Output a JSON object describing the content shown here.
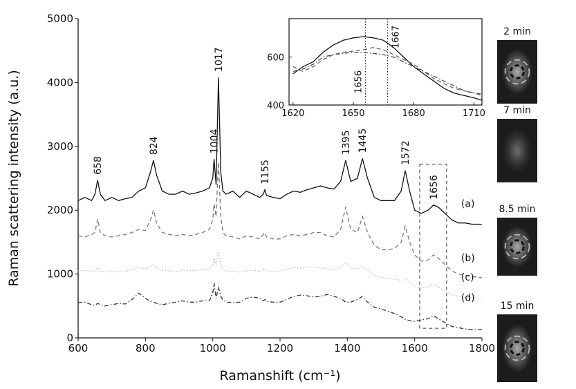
{
  "chart_data": [
    {
      "type": "line",
      "xlabel": "Ramanshift (cm⁻¹)",
      "ylabel": "Raman scattering intensity (a.u.)",
      "xlim": [
        600,
        1800
      ],
      "ylim": [
        0,
        5000
      ],
      "xticks": [
        600,
        800,
        1000,
        1200,
        1400,
        1600,
        1800
      ],
      "yticks": [
        0,
        1000,
        2000,
        3000,
        4000,
        5000
      ],
      "x": [
        600,
        620,
        640,
        650,
        658,
        666,
        680,
        700,
        720,
        740,
        760,
        780,
        800,
        815,
        824,
        833,
        850,
        870,
        890,
        910,
        930,
        950,
        970,
        990,
        1000,
        1004,
        1010,
        1017,
        1024,
        1030,
        1040,
        1060,
        1080,
        1100,
        1120,
        1140,
        1150,
        1155,
        1160,
        1180,
        1200,
        1220,
        1240,
        1260,
        1280,
        1300,
        1320,
        1340,
        1360,
        1380,
        1395,
        1410,
        1430,
        1445,
        1460,
        1480,
        1500,
        1520,
        1540,
        1560,
        1572,
        1585,
        1600,
        1620,
        1640,
        1656,
        1670,
        1690,
        1710,
        1730,
        1750,
        1770,
        1790,
        1800
      ],
      "series": [
        {
          "name": "(a)",
          "color": "#111111",
          "style": "solid",
          "values": [
            2150,
            2200,
            2150,
            2250,
            2470,
            2250,
            2150,
            2200,
            2150,
            2180,
            2200,
            2300,
            2350,
            2600,
            2780,
            2550,
            2300,
            2250,
            2250,
            2300,
            2250,
            2270,
            2300,
            2350,
            2500,
            2800,
            2400,
            4080,
            2600,
            2300,
            2250,
            2300,
            2200,
            2300,
            2250,
            2200,
            2250,
            2320,
            2230,
            2200,
            2180,
            2250,
            2300,
            2280,
            2320,
            2350,
            2380,
            2350,
            2330,
            2450,
            2780,
            2450,
            2500,
            2810,
            2500,
            2200,
            2150,
            2150,
            2150,
            2300,
            2620,
            2300,
            2000,
            1950,
            2000,
            2080,
            2050,
            1950,
            1850,
            1800,
            1800,
            1780,
            1780,
            1770
          ]
        },
        {
          "name": "(b)",
          "color": "#777777",
          "style": "dashed",
          "values": [
            1600,
            1580,
            1620,
            1650,
            1860,
            1650,
            1600,
            1580,
            1600,
            1620,
            1650,
            1700,
            1680,
            1850,
            2000,
            1800,
            1650,
            1620,
            1600,
            1620,
            1600,
            1620,
            1650,
            1700,
            1850,
            2100,
            1900,
            2750,
            1900,
            1650,
            1600,
            1580,
            1550,
            1600,
            1580,
            1550,
            1620,
            1650,
            1580,
            1550,
            1550,
            1600,
            1620,
            1600,
            1620,
            1650,
            1650,
            1600,
            1580,
            1700,
            2050,
            1700,
            1650,
            1900,
            1650,
            1450,
            1380,
            1380,
            1400,
            1500,
            1750,
            1500,
            1300,
            1200,
            1220,
            1300,
            1250,
            1150,
            1050,
            1000,
            980,
            960,
            950,
            940
          ]
        },
        {
          "name": "(c)",
          "color": "#bbbbbb",
          "style": "dotted",
          "values": [
            1050,
            1060,
            1040,
            1050,
            1100,
            1050,
            1030,
            1040,
            1030,
            1050,
            1060,
            1100,
            1080,
            1120,
            1150,
            1100,
            1060,
            1050,
            1040,
            1060,
            1050,
            1060,
            1070,
            1080,
            1150,
            1250,
            1150,
            1350,
            1150,
            1080,
            1050,
            1040,
            1030,
            1050,
            1060,
            1040,
            1060,
            1080,
            1050,
            1040,
            1050,
            1080,
            1100,
            1090,
            1100,
            1110,
            1100,
            1080,
            1070,
            1100,
            1180,
            1100,
            1080,
            1120,
            1060,
            980,
            950,
            930,
            920,
            900,
            930,
            880,
            820,
            780,
            800,
            830,
            800,
            740,
            680,
            650,
            640,
            630,
            620,
            620
          ]
        },
        {
          "name": "(d)",
          "color": "#333333",
          "style": "dashdot",
          "values": [
            550,
            560,
            520,
            510,
            540,
            520,
            500,
            520,
            540,
            530,
            600,
            700,
            620,
            570,
            560,
            540,
            520,
            540,
            560,
            580,
            560,
            560,
            580,
            580,
            700,
            860,
            620,
            800,
            650,
            600,
            560,
            550,
            560,
            620,
            640,
            620,
            580,
            600,
            570,
            560,
            560,
            600,
            650,
            670,
            660,
            640,
            650,
            680,
            650,
            620,
            560,
            560,
            600,
            650,
            560,
            480,
            450,
            420,
            380,
            330,
            290,
            270,
            260,
            280,
            300,
            350,
            300,
            240,
            180,
            160,
            140,
            130,
            130,
            130
          ]
        }
      ],
      "annotations": [
        "658",
        "824",
        "1004",
        "1017",
        "1155",
        "1395",
        "1445",
        "1572",
        "1656"
      ],
      "region": {
        "x": [
          1615,
          1695
        ],
        "y": [
          150,
          2720
        ]
      }
    },
    {
      "type": "line",
      "xlim": [
        1618,
        1714
      ],
      "ylim": [
        400,
        760
      ],
      "xticks": [
        1620,
        1650,
        1680,
        1710
      ],
      "yticks": [
        400,
        600
      ],
      "x": [
        1620,
        1625,
        1630,
        1635,
        1640,
        1645,
        1650,
        1655,
        1660,
        1665,
        1670,
        1675,
        1680,
        1685,
        1690,
        1695,
        1700,
        1705,
        1710,
        1714
      ],
      "series": [
        {
          "color": "#111111",
          "style": "solid",
          "values": [
            530,
            560,
            580,
            620,
            650,
            670,
            680,
            685,
            680,
            670,
            640,
            600,
            560,
            530,
            500,
            470,
            450,
            440,
            430,
            420
          ]
        },
        {
          "color": "#666666",
          "style": "dashed",
          "values": [
            560,
            540,
            560,
            590,
            610,
            620,
            625,
            630,
            640,
            630,
            610,
            590,
            570,
            540,
            510,
            490,
            470,
            460,
            450,
            440
          ]
        },
        {
          "color": "#444444",
          "style": "dashdot",
          "values": [
            540,
            550,
            570,
            600,
            610,
            615,
            620,
            620,
            615,
            610,
            600,
            580,
            560,
            540,
            520,
            500,
            480,
            460,
            450,
            445
          ]
        }
      ],
      "vlines": [
        {
          "value": 1656,
          "label": "1656"
        },
        {
          "value": 1667,
          "label": "1667"
        }
      ]
    }
  ],
  "images": [
    {
      "label": "2 min"
    },
    {
      "label": "7 min"
    },
    {
      "label": "8.5 min"
    },
    {
      "label": "15 min"
    }
  ]
}
